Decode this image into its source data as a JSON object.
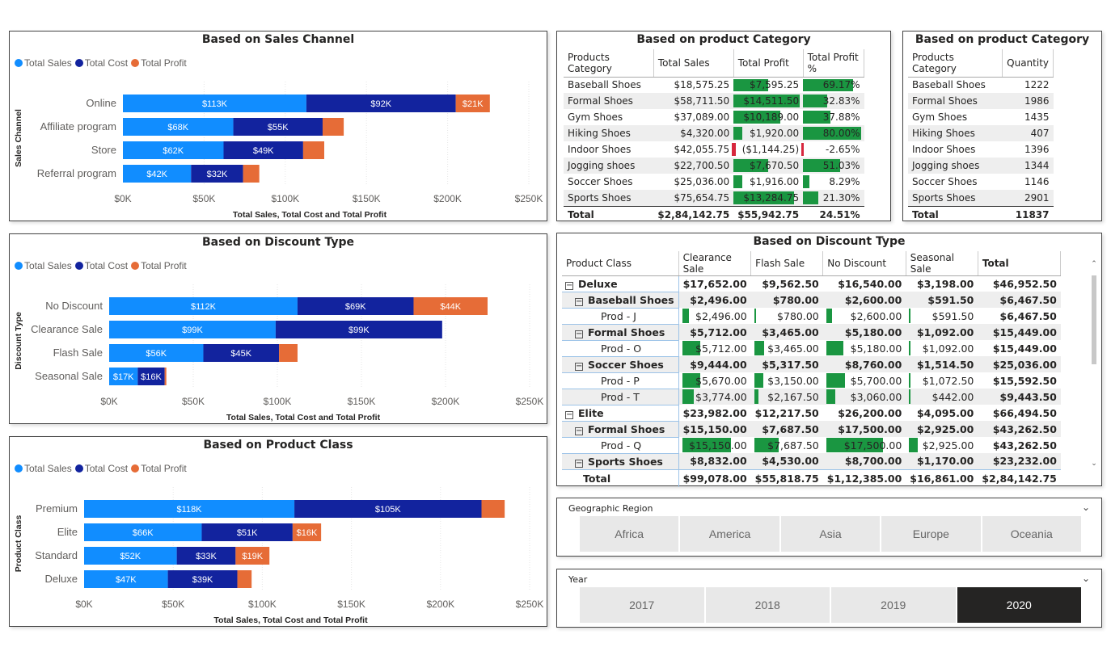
{
  "colors": {
    "sales": "#118DFF",
    "cost": "#12239E",
    "profit": "#E66C37",
    "pos": "#1a9641",
    "neg": "#d7263d"
  },
  "legend": {
    "sales": "Total Sales",
    "cost": "Total Cost",
    "profit": "Total Profit"
  },
  "chart_data": [
    {
      "type": "bar",
      "title": "Based on Sales Channel",
      "xlabel": "Total Sales, Total Cost and Total Profit",
      "ylabel": "Sales Channel",
      "categories": [
        "Online",
        "Affiliate program",
        "Store",
        "Referral program"
      ],
      "series": [
        {
          "name": "Total Sales",
          "values": [
            113,
            68,
            62,
            42
          ],
          "labels": [
            "$113K",
            "$68K",
            "$62K",
            "$42K"
          ]
        },
        {
          "name": "Total Cost",
          "values": [
            92,
            55,
            49,
            32
          ],
          "labels": [
            "$92K",
            "$55K",
            "$49K",
            "$32K"
          ]
        },
        {
          "name": "Total Profit",
          "values": [
            21,
            13,
            13,
            10
          ],
          "labels": [
            "$21K",
            "",
            "",
            ""
          ]
        }
      ],
      "xlim": [
        0,
        250
      ],
      "ticks": [
        "$0K",
        "$50K",
        "$100K",
        "$150K",
        "$200K",
        "$250K"
      ]
    },
    {
      "type": "bar",
      "title": "Based on Discount Type",
      "xlabel": "Total Sales, Total Cost and Total Profit",
      "ylabel": "Discount Type",
      "categories": [
        "No Discount",
        "Clearance Sale",
        "Flash Sale",
        "Seasonal Sale"
      ],
      "series": [
        {
          "name": "Total Sales",
          "values": [
            112,
            99,
            56,
            17
          ],
          "labels": [
            "$112K",
            "$99K",
            "$56K",
            "$17K"
          ]
        },
        {
          "name": "Total Cost",
          "values": [
            69,
            99,
            45,
            16
          ],
          "labels": [
            "$69K",
            "$99K",
            "$45K",
            "$16K"
          ]
        },
        {
          "name": "Total Profit",
          "values": [
            44,
            0,
            11,
            1
          ],
          "labels": [
            "$44K",
            "",
            "",
            ""
          ]
        }
      ],
      "xlim": [
        0,
        250
      ],
      "ticks": [
        "$0K",
        "$50K",
        "$100K",
        "$150K",
        "$200K",
        "$250K"
      ]
    },
    {
      "type": "bar",
      "title": "Based on Product Class",
      "xlabel": "Total Sales, Total Cost and Total Profit",
      "ylabel": "Product Class",
      "categories": [
        "Premium",
        "Elite",
        "Standard",
        "Deluxe"
      ],
      "series": [
        {
          "name": "Total Sales",
          "values": [
            118,
            66,
            52,
            47
          ],
          "labels": [
            "$118K",
            "$66K",
            "$52K",
            "$47K"
          ]
        },
        {
          "name": "Total Cost",
          "values": [
            105,
            51,
            33,
            39
          ],
          "labels": [
            "$105K",
            "$51K",
            "$33K",
            "$39K"
          ]
        },
        {
          "name": "Total Profit",
          "values": [
            13,
            16,
            19,
            8
          ],
          "labels": [
            "",
            "$16K",
            "$19K",
            ""
          ]
        }
      ],
      "xlim": [
        0,
        250
      ],
      "ticks": [
        "$0K",
        "$50K",
        "$100K",
        "$150K",
        "$200K",
        "$250K"
      ]
    }
  ],
  "cat_table": {
    "title": "Based on product Category",
    "headers": [
      "Products Category",
      "Total Sales",
      "Total Profit",
      "Total Profit %"
    ],
    "rows": [
      [
        "Baseball Shoes",
        "$18,575.25",
        "$7,595.25",
        "69.17%"
      ],
      [
        "Formal Shoes",
        "$58,711.50",
        "$14,511.50",
        "32.83%"
      ],
      [
        "Gym Shoes",
        "$37,089.00",
        "$10,189.00",
        "37.88%"
      ],
      [
        "Hiking Shoes",
        "$4,320.00",
        "$1,920.00",
        "80.00%"
      ],
      [
        "Indoor Shoes",
        "$42,055.75",
        "($1,144.25)",
        "-2.65%"
      ],
      [
        "Jogging shoes",
        "$22,700.50",
        "$7,670.50",
        "51.03%"
      ],
      [
        "Soccer Shoes",
        "$25,036.00",
        "$1,916.00",
        "8.29%"
      ],
      [
        "Sports Shoes",
        "$75,654.75",
        "$13,284.75",
        "21.30%"
      ]
    ],
    "profit_values": [
      7595.25,
      14511.5,
      10189,
      1920,
      -1144.25,
      7670.5,
      1916,
      13284.75
    ],
    "pct_values": [
      69.17,
      32.83,
      37.88,
      80.0,
      -2.65,
      51.03,
      8.29,
      21.3
    ],
    "total": [
      "Total",
      "$2,84,142.75",
      "$55,942.75",
      "24.51%"
    ]
  },
  "qty_table": {
    "title": "Based on product Category",
    "headers": [
      "Products Category",
      "Quantity"
    ],
    "rows": [
      [
        "Baseball Shoes",
        "1222"
      ],
      [
        "Formal Shoes",
        "1986"
      ],
      [
        "Gym Shoes",
        "1435"
      ],
      [
        "Hiking Shoes",
        "407"
      ],
      [
        "Indoor Shoes",
        "1396"
      ],
      [
        "Jogging shoes",
        "1344"
      ],
      [
        "Soccer Shoes",
        "1146"
      ],
      [
        "Sports Shoes",
        "2901"
      ]
    ],
    "total": [
      "Total",
      "11837"
    ]
  },
  "matrix": {
    "title": "Based on Discount Type",
    "headers": [
      "Product Class",
      "Clearance Sale",
      "Flash Sale",
      "No Discount",
      "Seasonal Sale",
      "Total"
    ],
    "rows": [
      {
        "level": 0,
        "toggle": "−",
        "label": "Deluxe",
        "cells": [
          "$17,652.00",
          "$9,562.50",
          "$16,540.00",
          "$3,198.00",
          "$46,952.50"
        ]
      },
      {
        "level": 1,
        "toggle": "−",
        "label": "Baseball Shoes",
        "cells": [
          "$2,496.00",
          "$780.00",
          "$2,600.00",
          "$591.50",
          "$6,467.50"
        ]
      },
      {
        "level": 2,
        "label": "Prod - J",
        "cells": [
          "$2,496.00",
          "$780.00",
          "$2,600.00",
          "$591.50",
          "$6,467.50"
        ],
        "bars": [
          0.12,
          0.02,
          0.1,
          0.02
        ]
      },
      {
        "level": 1,
        "toggle": "−",
        "label": "Formal Shoes",
        "cells": [
          "$5,712.00",
          "$3,465.00",
          "$5,180.00",
          "$1,092.00",
          "$15,449.00"
        ]
      },
      {
        "level": 2,
        "label": "Prod - O",
        "cells": [
          "$5,712.00",
          "$3,465.00",
          "$5,180.00",
          "$1,092.00",
          "$15,449.00"
        ],
        "bars": [
          0.32,
          0.18,
          0.3,
          0.02
        ]
      },
      {
        "level": 1,
        "toggle": "−",
        "label": "Soccer Shoes",
        "cells": [
          "$9,444.00",
          "$5,317.50",
          "$8,760.00",
          "$1,514.50",
          "$25,036.00"
        ]
      },
      {
        "level": 2,
        "label": "Prod - P",
        "cells": [
          "$5,670.00",
          "$3,150.00",
          "$5,700.00",
          "$1,072.50",
          "$15,592.50"
        ],
        "bars": [
          0.32,
          0.16,
          0.33,
          0.02
        ]
      },
      {
        "level": 2,
        "label": "Prod - T",
        "cells": [
          "$3,774.00",
          "$2,167.50",
          "$3,060.00",
          "$442.00",
          "$9,443.50"
        ],
        "bars": [
          0.2,
          0.08,
          0.16,
          0.01
        ]
      },
      {
        "level": 0,
        "toggle": "−",
        "label": "Elite",
        "cells": [
          "$23,982.00",
          "$12,217.50",
          "$26,200.00",
          "$4,095.00",
          "$66,494.50"
        ]
      },
      {
        "level": 1,
        "toggle": "−",
        "label": "Formal Shoes",
        "cells": [
          "$15,150.00",
          "$7,687.50",
          "$17,500.00",
          "$2,925.00",
          "$43,262.50"
        ]
      },
      {
        "level": 2,
        "label": "Prod - Q",
        "cells": [
          "$15,150.00",
          "$7,687.50",
          "$17,500.00",
          "$2,925.00",
          "$43,262.50"
        ],
        "bars": [
          0.87,
          0.44,
          1.0,
          0.16
        ]
      },
      {
        "level": 1,
        "toggle": "−",
        "label": "Sports Shoes",
        "cells": [
          "$8,832.00",
          "$4,530.00",
          "$8,700.00",
          "$1,170.00",
          "$23,232.00"
        ]
      }
    ],
    "total": [
      "Total",
      "$99,078.00",
      "$55,818.75",
      "$1,12,385.00",
      "$16,861.00",
      "$2,84,142.75"
    ]
  },
  "region_slicer": {
    "title": "Geographic Region",
    "options": [
      "Africa",
      "America",
      "Asia",
      "Europe",
      "Oceania"
    ]
  },
  "year_slicer": {
    "title": "Year",
    "options": [
      "2017",
      "2018",
      "2019",
      "2020"
    ],
    "selected": "2020"
  }
}
